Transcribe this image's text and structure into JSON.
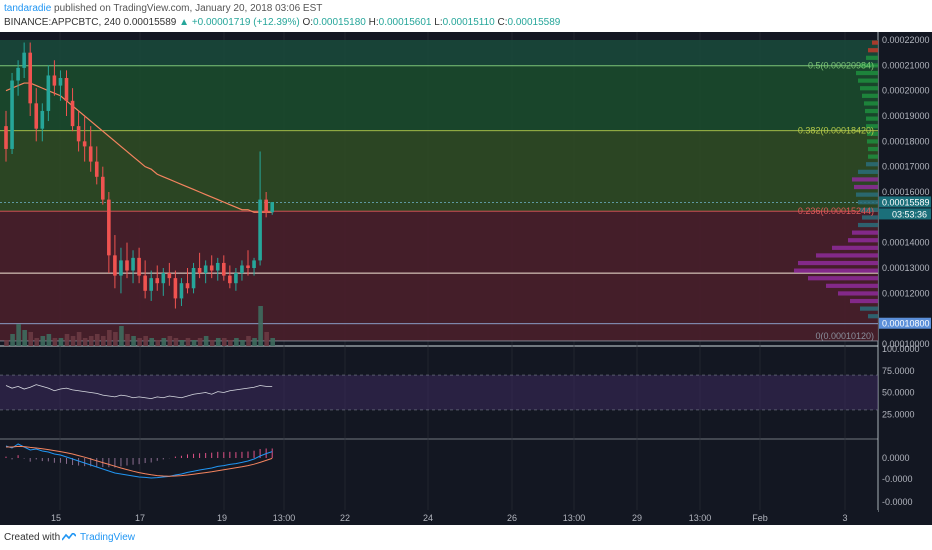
{
  "header": {
    "author": "tandaradie",
    "published_text": "published on TradingView.com, January 20, 2018 03:06 EST",
    "symbol": "BINANCE:APPCBTC, 240",
    "last": "0.00015589",
    "change": "+0.00001719 (+12.39%)",
    "open_label": "O:",
    "open": "0.00015180",
    "high_label": "H:",
    "high": "0.00015601",
    "low_label": "L:",
    "low": "0.00015110",
    "close_label": "C:",
    "close": "0.00015589"
  },
  "footer": {
    "created_with": "Created with",
    "brand": "TradingView"
  },
  "colors": {
    "background": "#131722",
    "bull": "#26a69a",
    "bear": "#ef5350",
    "fib_green_zone": "#1b4a2f",
    "fib_red_zone": "#4a1d26",
    "ma": "#f4845f",
    "accent": "#2196f3"
  },
  "chart_data": {
    "type": "candlestick",
    "ylim": [
      0.0001,
      0.00022
    ],
    "price_ticks": [
      "0.00022000",
      "0.00021000",
      "0.00020000",
      "0.00019000",
      "0.00018000",
      "0.00017000",
      "0.00016000",
      "0.00015589",
      "0.00014000",
      "0.00013000",
      "0.00012000",
      "0.00010800",
      "0.00010000"
    ],
    "current_price_label": "0.00015589",
    "countdown_label": "03:53:36",
    "highlight_price_label": "0.00010800",
    "fib_levels": [
      {
        "label": "0.5(0.00020984)",
        "value": 0.00020984
      },
      {
        "label": "0.382(0.00018420)",
        "value": 0.0001842
      },
      {
        "label": "0.236(0.00015244)",
        "value": 0.00015244
      },
      {
        "label": "0(0.00010120)",
        "value": 0.0001012
      }
    ],
    "time_ticks": [
      "15",
      "17",
      "19",
      "13:00",
      "22",
      "24",
      "26",
      "13:00",
      "29",
      "13:00",
      "Feb",
      "3"
    ],
    "candles_ohlc": [
      [
        0.000186,
        0.000192,
        0.000172,
        0.000177
      ],
      [
        0.000177,
        0.000207,
        0.000175,
        0.000204
      ],
      [
        0.000204,
        0.000212,
        0.000198,
        0.000209
      ],
      [
        0.000209,
        0.000219,
        0.000205,
        0.000215
      ],
      [
        0.000215,
        0.000219,
        0.00019,
        0.000195
      ],
      [
        0.000195,
        0.000201,
        0.00018,
        0.000185
      ],
      [
        0.000185,
        0.000195,
        0.00018,
        0.000192
      ],
      [
        0.000192,
        0.00021,
        0.000188,
        0.000206
      ],
      [
        0.000206,
        0.000212,
        0.000198,
        0.000202
      ],
      [
        0.000202,
        0.000208,
        0.000196,
        0.000205
      ],
      [
        0.000205,
        0.000208,
        0.00019,
        0.000196
      ],
      [
        0.000196,
        0.000201,
        0.000184,
        0.000186
      ],
      [
        0.000186,
        0.000192,
        0.000176,
        0.00018
      ],
      [
        0.00018,
        0.00019,
        0.000172,
        0.000178
      ],
      [
        0.000178,
        0.000186,
        0.000168,
        0.000172
      ],
      [
        0.000172,
        0.000178,
        0.000163,
        0.000166
      ],
      [
        0.000166,
        0.00017,
        0.000155,
        0.000157
      ],
      [
        0.000157,
        0.00016,
        0.000128,
        0.000135
      ],
      [
        0.000135,
        0.000143,
        0.000122,
        0.000127
      ],
      [
        0.000127,
        0.000138,
        0.00012,
        0.000133
      ],
      [
        0.000133,
        0.00014,
        0.000126,
        0.000129
      ],
      [
        0.000129,
        0.000137,
        0.000124,
        0.000134
      ],
      [
        0.000134,
        0.000138,
        0.000124,
        0.000127
      ],
      [
        0.000127,
        0.000133,
        0.000118,
        0.000121
      ],
      [
        0.000121,
        0.000129,
        0.000117,
        0.000126
      ],
      [
        0.000126,
        0.000131,
        0.000121,
        0.000124
      ],
      [
        0.000124,
        0.00013,
        0.000119,
        0.000128
      ],
      [
        0.000128,
        0.000132,
        0.000123,
        0.000126
      ],
      [
        0.000126,
        0.000129,
        0.000114,
        0.000118
      ],
      [
        0.000118,
        0.000126,
        0.000115,
        0.000124
      ],
      [
        0.000124,
        0.00013,
        0.00012,
        0.000122
      ],
      [
        0.000122,
        0.000132,
        0.00012,
        0.00013
      ],
      [
        0.00013,
        0.000136,
        0.000126,
        0.000128
      ],
      [
        0.000128,
        0.000133,
        0.000124,
        0.000131
      ],
      [
        0.000131,
        0.000135,
        0.000126,
        0.000129
      ],
      [
        0.000129,
        0.000134,
        0.000125,
        0.000132
      ],
      [
        0.000132,
        0.000135,
        0.000125,
        0.000127
      ],
      [
        0.000127,
        0.000131,
        0.000122,
        0.000124
      ],
      [
        0.000124,
        0.00013,
        0.000121,
        0.000128
      ],
      [
        0.000128,
        0.000133,
        0.000125,
        0.000131
      ],
      [
        0.000131,
        0.000137,
        0.000127,
        0.00013
      ],
      [
        0.00013,
        0.000134,
        0.000127,
        0.000133
      ],
      [
        0.000133,
        0.000176,
        0.000131,
        0.000157
      ],
      [
        0.000157,
        0.00016,
        0.00015,
        0.000152
      ],
      [
        0.000152,
        0.000156,
        0.000151,
        0.000156
      ]
    ],
    "moving_average": [
      0.0002,
      0.000201,
      0.000202,
      0.000203,
      0.000203,
      0.000202,
      0.000201,
      0.0002,
      0.000199,
      0.000198,
      0.000196,
      0.000194,
      0.000192,
      0.00019,
      0.000188,
      0.000186,
      0.000184,
      0.000182,
      0.00018,
      0.000178,
      0.000176,
      0.000174,
      0.000172,
      0.00017,
      0.000169,
      0.000167,
      0.000166,
      0.000165,
      0.000164,
      0.000163,
      0.000162,
      0.000161,
      0.00016,
      0.000159,
      0.000158,
      0.000157,
      0.000156,
      0.000155,
      0.000154,
      0.000153,
      0.000153,
      0.000152,
      0.000152,
      0.000152,
      0.000152
    ],
    "volume": [
      0.15,
      0.3,
      0.55,
      0.4,
      0.35,
      0.2,
      0.25,
      0.3,
      0.2,
      0.2,
      0.3,
      0.25,
      0.35,
      0.2,
      0.25,
      0.3,
      0.25,
      0.4,
      0.35,
      0.5,
      0.3,
      0.25,
      0.2,
      0.25,
      0.2,
      0.15,
      0.2,
      0.25,
      0.2,
      0.15,
      0.2,
      0.15,
      0.2,
      0.25,
      0.15,
      0.2,
      0.2,
      0.15,
      0.2,
      0.15,
      0.25,
      0.2,
      1.0,
      0.35,
      0.2
    ],
    "rsi": {
      "ticks": [
        "100.0000",
        "75.0000",
        "50.0000",
        "25.0000"
      ],
      "levels": [
        70,
        30
      ],
      "values": [
        58,
        55,
        57,
        54,
        56,
        59,
        57,
        55,
        52,
        54,
        55,
        53,
        52,
        51,
        50,
        49,
        47,
        46,
        45,
        47,
        46,
        44,
        45,
        44,
        43,
        45,
        44,
        46,
        45,
        44,
        46,
        48,
        49,
        50,
        48,
        51,
        50,
        52,
        53,
        54,
        55,
        56,
        58,
        57,
        57
      ]
    },
    "macd": {
      "ticks": [
        "0.0000",
        "-0.0000",
        "-0.0000"
      ],
      "macd_line": [
        0.6,
        0.5,
        0.7,
        0.55,
        0.4,
        0.45,
        0.35,
        0.3,
        0.2,
        0.15,
        0.05,
        -0.05,
        -0.15,
        -0.25,
        -0.35,
        -0.45,
        -0.55,
        -0.65,
        -0.75,
        -0.8,
        -0.85,
        -0.9,
        -0.95,
        -0.97,
        -1.0,
        -0.98,
        -0.95,
        -0.92,
        -0.85,
        -0.8,
        -0.72,
        -0.66,
        -0.6,
        -0.55,
        -0.5,
        -0.42,
        -0.38,
        -0.32,
        -0.28,
        -0.22,
        -0.15,
        -0.05,
        0.1,
        0.22,
        0.32
      ],
      "signal_line": [
        0.55,
        0.55,
        0.58,
        0.57,
        0.53,
        0.5,
        0.46,
        0.42,
        0.37,
        0.32,
        0.26,
        0.2,
        0.12,
        0.04,
        -0.05,
        -0.14,
        -0.23,
        -0.32,
        -0.41,
        -0.5,
        -0.58,
        -0.66,
        -0.73,
        -0.79,
        -0.84,
        -0.88,
        -0.9,
        -0.91,
        -0.9,
        -0.88,
        -0.85,
        -0.81,
        -0.77,
        -0.73,
        -0.69,
        -0.64,
        -0.59,
        -0.54,
        -0.49,
        -0.44,
        -0.38,
        -0.31,
        -0.22,
        -0.12,
        -0.02
      ],
      "histogram": [
        0.05,
        -0.05,
        0.1,
        -0.02,
        -0.13,
        -0.05,
        -0.11,
        -0.12,
        -0.17,
        -0.17,
        -0.21,
        -0.25,
        -0.27,
        -0.29,
        -0.3,
        -0.31,
        -0.32,
        -0.33,
        -0.34,
        -0.3,
        -0.27,
        -0.24,
        -0.22,
        -0.18,
        -0.16,
        -0.1,
        -0.05,
        -0.01,
        0.05,
        0.08,
        0.13,
        0.15,
        0.17,
        0.18,
        0.19,
        0.22,
        0.21,
        0.22,
        0.21,
        0.22,
        0.23,
        0.26,
        0.32,
        0.34,
        0.34
      ]
    },
    "volume_profile": [
      {
        "price": 0.000219,
        "w": 6,
        "color": "#c0392b"
      },
      {
        "price": 0.000216,
        "w": 10,
        "color": "#c0392b"
      },
      {
        "price": 0.000213,
        "w": 12,
        "color": "#1e8e3e"
      },
      {
        "price": 0.00021,
        "w": 18,
        "color": "#1e8e3e"
      },
      {
        "price": 0.000207,
        "w": 22,
        "color": "#1e8e3e"
      },
      {
        "price": 0.000204,
        "w": 20,
        "color": "#1e8e3e"
      },
      {
        "price": 0.000201,
        "w": 18,
        "color": "#1e8e3e"
      },
      {
        "price": 0.000198,
        "w": 16,
        "color": "#1e8e3e"
      },
      {
        "price": 0.000195,
        "w": 14,
        "color": "#1e8e3e"
      },
      {
        "price": 0.000192,
        "w": 13,
        "color": "#1e8e3e"
      },
      {
        "price": 0.000189,
        "w": 12,
        "color": "#1e8e3e"
      },
      {
        "price": 0.000186,
        "w": 12,
        "color": "#1e8e3e"
      },
      {
        "price": 0.000183,
        "w": 11,
        "color": "#1e8e3e"
      },
      {
        "price": 0.00018,
        "w": 11,
        "color": "#1e8e3e"
      },
      {
        "price": 0.000177,
        "w": 10,
        "color": "#1e8e3e"
      },
      {
        "price": 0.000174,
        "w": 10,
        "color": "#1e8e3e"
      },
      {
        "price": 0.000171,
        "w": 12,
        "color": "#2a6d7a"
      },
      {
        "price": 0.000168,
        "w": 20,
        "color": "#2a6d7a"
      },
      {
        "price": 0.000165,
        "w": 26,
        "color": "#8e2c9a"
      },
      {
        "price": 0.000162,
        "w": 24,
        "color": "#8e2c9a"
      },
      {
        "price": 0.000159,
        "w": 22,
        "color": "#2a6d7a"
      },
      {
        "price": 0.000156,
        "w": 20,
        "color": "#2a6d7a"
      },
      {
        "price": 0.000153,
        "w": 18,
        "color": "#2a6d7a"
      },
      {
        "price": 0.00015,
        "w": 16,
        "color": "#2a6d7a"
      },
      {
        "price": 0.000147,
        "w": 20,
        "color": "#2a6d7a"
      },
      {
        "price": 0.000144,
        "w": 26,
        "color": "#8e2c9a"
      },
      {
        "price": 0.000141,
        "w": 30,
        "color": "#8e2c9a"
      },
      {
        "price": 0.000138,
        "w": 46,
        "color": "#8e2c9a"
      },
      {
        "price": 0.000135,
        "w": 62,
        "color": "#8e2c9a"
      },
      {
        "price": 0.000132,
        "w": 80,
        "color": "#8e2c9a"
      },
      {
        "price": 0.000129,
        "w": 84,
        "color": "#8e2c9a"
      },
      {
        "price": 0.000126,
        "w": 70,
        "color": "#8e2c9a"
      },
      {
        "price": 0.000123,
        "w": 52,
        "color": "#8e2c9a"
      },
      {
        "price": 0.00012,
        "w": 40,
        "color": "#8e2c9a"
      },
      {
        "price": 0.000117,
        "w": 28,
        "color": "#8e2c9a"
      },
      {
        "price": 0.000114,
        "w": 18,
        "color": "#2a6d7a"
      },
      {
        "price": 0.000111,
        "w": 10,
        "color": "#2a6d7a"
      }
    ]
  }
}
